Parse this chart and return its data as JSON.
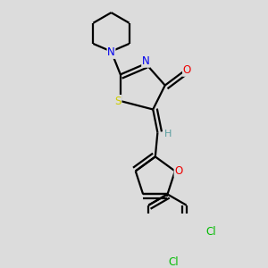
{
  "bg_color": "#dcdcdc",
  "atom_colors": {
    "C": "#000000",
    "N": "#0000ee",
    "O": "#ee0000",
    "S": "#cccc00",
    "Cl": "#00bb00",
    "H": "#5a9ea0"
  },
  "bond_color": "#000000",
  "bond_width": 1.6,
  "figsize": [
    3.0,
    3.0
  ],
  "dpi": 100
}
